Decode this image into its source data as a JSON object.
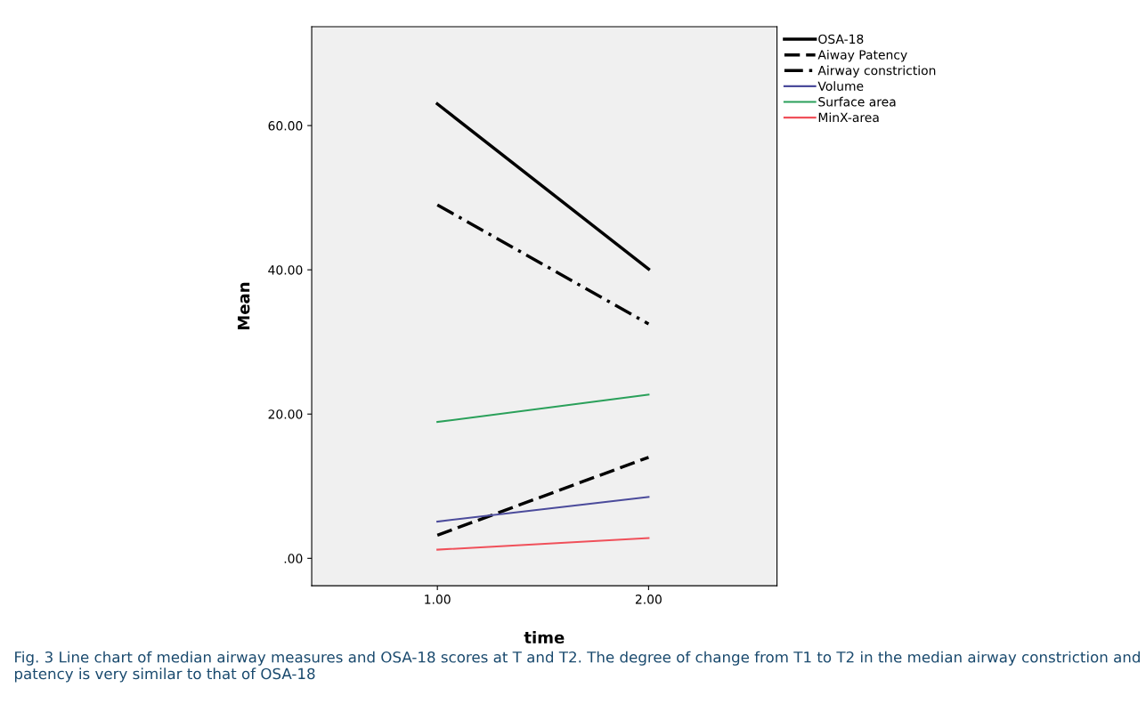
{
  "chart_data": {
    "type": "line",
    "xlabel": "time",
    "ylabel": "Mean",
    "x": [
      1,
      2
    ],
    "series": [
      {
        "name": "OSA-18",
        "color": "#000000",
        "values": [
          63.0,
          40.1
        ],
        "line_style": "solid"
      },
      {
        "name": "Aiway Patency",
        "color": "#000000",
        "values": [
          3.2,
          14.0
        ],
        "line_style": "dashed"
      },
      {
        "name": "Airway constriction",
        "color": "#000000",
        "values": [
          49.0,
          32.5
        ],
        "line_style": "dashdot"
      },
      {
        "name": "Volume",
        "color": "#4b4b9b",
        "values": [
          5.1,
          8.5
        ],
        "line_style": "solid"
      },
      {
        "name": "Surface area",
        "color": "#2aa05a",
        "values": [
          18.9,
          22.7
        ],
        "line_style": "solid"
      },
      {
        "name": "MinX-area",
        "color": "#f0505a",
        "values": [
          1.2,
          2.8
        ],
        "line_style": "solid"
      }
    ],
    "xlim": [
      0.405,
      2.608
    ],
    "xticks": [
      {
        "value": 1,
        "label": "1.00"
      },
      {
        "value": 2,
        "label": "2.00"
      }
    ],
    "ylim": [
      -3.8,
      73.7
    ],
    "yticks": [
      {
        "value": 0,
        "label": ".00"
      },
      {
        "value": 20,
        "label": "20.00"
      },
      {
        "value": 40,
        "label": "40.00"
      },
      {
        "value": 60,
        "label": "60.00"
      }
    ],
    "grid": false,
    "legend": "top right",
    "marker": "none",
    "annotations": [
      "Fig. 3 Line chart of median airway measures and OSA-18 scores at T and T2. The degree of change from T1 to T2 in the median airway constriction and patency is very similar to that of OSA-18"
    ]
  }
}
